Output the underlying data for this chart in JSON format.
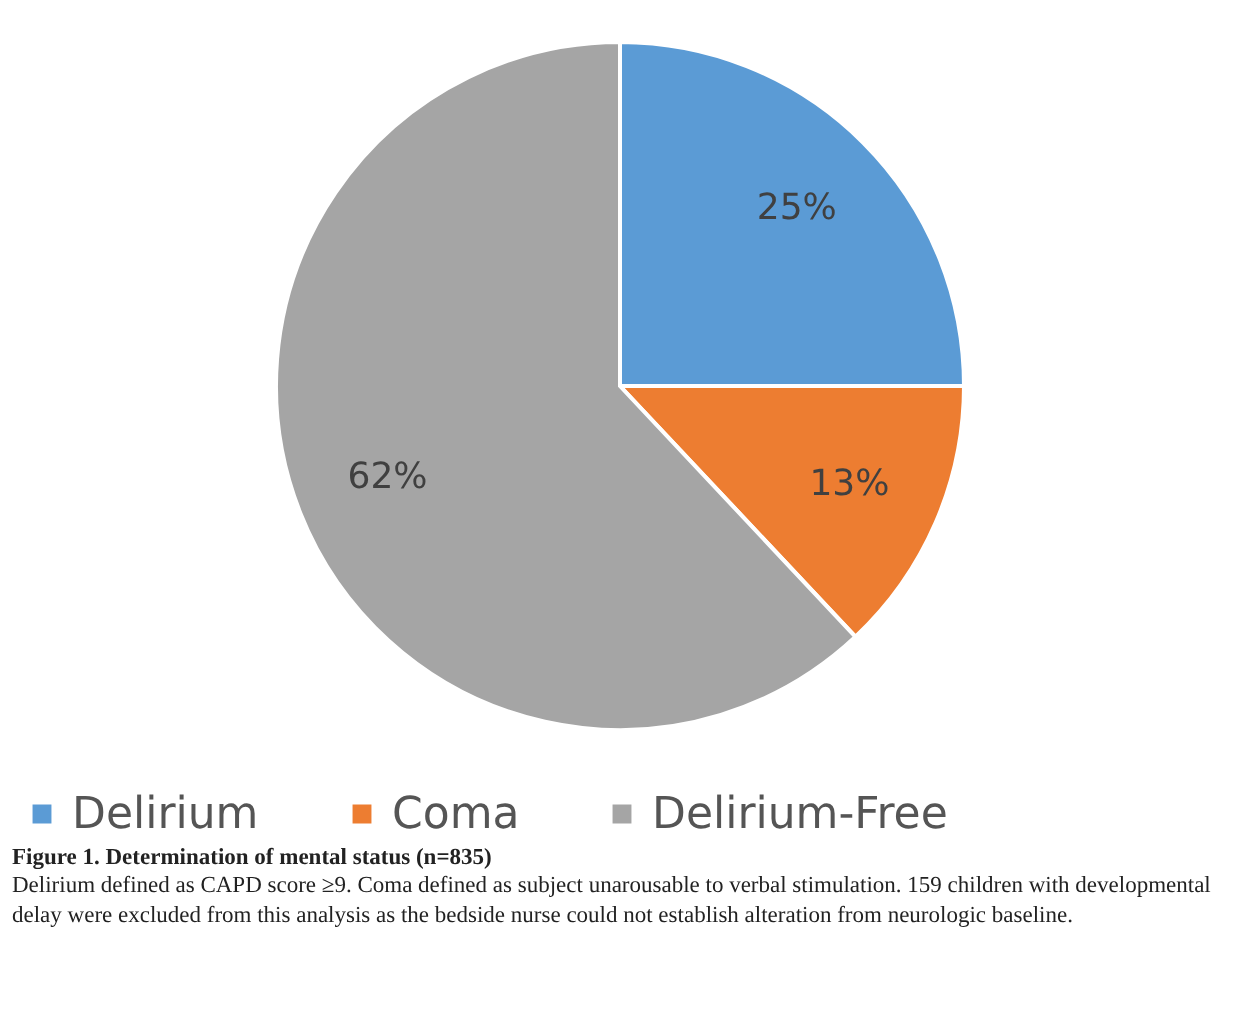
{
  "chart_data": {
    "type": "pie",
    "title": "Figure 1. Determination of mental status (n=835)",
    "annotations": [
      "Delirium defined as CAPD score ≥9. Coma defined as subject unarousable to verbal stimulation. 159 children with developmental delay were excluded from this analysis as the bedside nurse could not establish alteration from neurologic baseline."
    ],
    "categories": [
      "Delirium",
      "Coma",
      "Delirium-Free"
    ],
    "values": [
      25,
      13,
      62
    ],
    "value_labels": [
      "25%",
      "13%",
      "62%"
    ],
    "colors": [
      "#5b9bd5",
      "#ed7d31",
      "#a5a5a5"
    ],
    "legend": "bottom"
  }
}
